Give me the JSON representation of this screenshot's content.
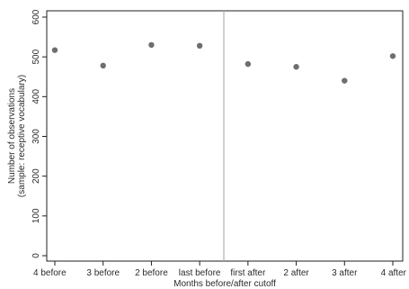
{
  "chart_data": {
    "type": "scatter",
    "xlabel": "Months before/after cutoff",
    "ylabel": [
      "Number of observations",
      "(sample: receptive vocabulary)"
    ],
    "categories": [
      "4 before",
      "3 before",
      "2 before",
      "last before",
      "first after",
      "2 after",
      "3 after",
      "4 after"
    ],
    "values": [
      517,
      478,
      530,
      528,
      482,
      475,
      440,
      502
    ],
    "ylim": [
      0,
      600
    ],
    "yticks": [
      0,
      100,
      200,
      300,
      400,
      500,
      600
    ],
    "cutoff_line": "between last before and first after",
    "grid": false,
    "colors": {
      "marker": "#6e6e6e",
      "axis": "#1f1f1f",
      "cutoff": "#b0b0b0"
    }
  }
}
